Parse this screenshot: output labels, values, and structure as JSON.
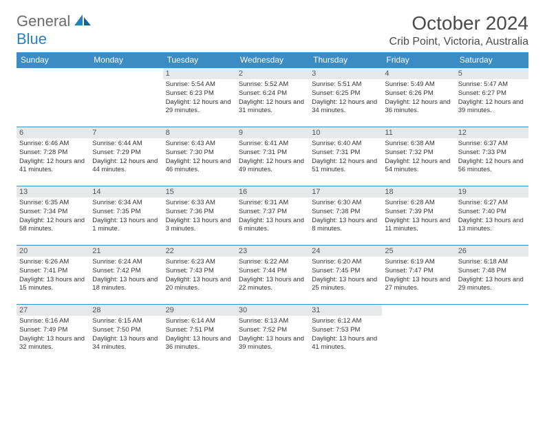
{
  "logo": {
    "general": "General",
    "blue": "Blue"
  },
  "title": "October 2024",
  "location": "Crib Point, Victoria, Australia",
  "colors": {
    "header_bg": "#3b8bc4",
    "header_text": "#ffffff",
    "daynum_bg": "#e7e8e9",
    "border": "#3b8bc4",
    "logo_gray": "#6b6b6b",
    "logo_blue": "#2a7fbf"
  },
  "weekdays": [
    "Sunday",
    "Monday",
    "Tuesday",
    "Wednesday",
    "Thursday",
    "Friday",
    "Saturday"
  ],
  "weeks": [
    [
      null,
      null,
      {
        "n": "1",
        "sr": "Sunrise: 5:54 AM",
        "ss": "Sunset: 6:23 PM",
        "dl": "Daylight: 12 hours and 29 minutes."
      },
      {
        "n": "2",
        "sr": "Sunrise: 5:52 AM",
        "ss": "Sunset: 6:24 PM",
        "dl": "Daylight: 12 hours and 31 minutes."
      },
      {
        "n": "3",
        "sr": "Sunrise: 5:51 AM",
        "ss": "Sunset: 6:25 PM",
        "dl": "Daylight: 12 hours and 34 minutes."
      },
      {
        "n": "4",
        "sr": "Sunrise: 5:49 AM",
        "ss": "Sunset: 6:26 PM",
        "dl": "Daylight: 12 hours and 36 minutes."
      },
      {
        "n": "5",
        "sr": "Sunrise: 5:47 AM",
        "ss": "Sunset: 6:27 PM",
        "dl": "Daylight: 12 hours and 39 minutes."
      }
    ],
    [
      {
        "n": "6",
        "sr": "Sunrise: 6:46 AM",
        "ss": "Sunset: 7:28 PM",
        "dl": "Daylight: 12 hours and 41 minutes."
      },
      {
        "n": "7",
        "sr": "Sunrise: 6:44 AM",
        "ss": "Sunset: 7:29 PM",
        "dl": "Daylight: 12 hours and 44 minutes."
      },
      {
        "n": "8",
        "sr": "Sunrise: 6:43 AM",
        "ss": "Sunset: 7:30 PM",
        "dl": "Daylight: 12 hours and 46 minutes."
      },
      {
        "n": "9",
        "sr": "Sunrise: 6:41 AM",
        "ss": "Sunset: 7:31 PM",
        "dl": "Daylight: 12 hours and 49 minutes."
      },
      {
        "n": "10",
        "sr": "Sunrise: 6:40 AM",
        "ss": "Sunset: 7:31 PM",
        "dl": "Daylight: 12 hours and 51 minutes."
      },
      {
        "n": "11",
        "sr": "Sunrise: 6:38 AM",
        "ss": "Sunset: 7:32 PM",
        "dl": "Daylight: 12 hours and 54 minutes."
      },
      {
        "n": "12",
        "sr": "Sunrise: 6:37 AM",
        "ss": "Sunset: 7:33 PM",
        "dl": "Daylight: 12 hours and 56 minutes."
      }
    ],
    [
      {
        "n": "13",
        "sr": "Sunrise: 6:35 AM",
        "ss": "Sunset: 7:34 PM",
        "dl": "Daylight: 12 hours and 58 minutes."
      },
      {
        "n": "14",
        "sr": "Sunrise: 6:34 AM",
        "ss": "Sunset: 7:35 PM",
        "dl": "Daylight: 13 hours and 1 minute."
      },
      {
        "n": "15",
        "sr": "Sunrise: 6:33 AM",
        "ss": "Sunset: 7:36 PM",
        "dl": "Daylight: 13 hours and 3 minutes."
      },
      {
        "n": "16",
        "sr": "Sunrise: 6:31 AM",
        "ss": "Sunset: 7:37 PM",
        "dl": "Daylight: 13 hours and 6 minutes."
      },
      {
        "n": "17",
        "sr": "Sunrise: 6:30 AM",
        "ss": "Sunset: 7:38 PM",
        "dl": "Daylight: 13 hours and 8 minutes."
      },
      {
        "n": "18",
        "sr": "Sunrise: 6:28 AM",
        "ss": "Sunset: 7:39 PM",
        "dl": "Daylight: 13 hours and 11 minutes."
      },
      {
        "n": "19",
        "sr": "Sunrise: 6:27 AM",
        "ss": "Sunset: 7:40 PM",
        "dl": "Daylight: 13 hours and 13 minutes."
      }
    ],
    [
      {
        "n": "20",
        "sr": "Sunrise: 6:26 AM",
        "ss": "Sunset: 7:41 PM",
        "dl": "Daylight: 13 hours and 15 minutes."
      },
      {
        "n": "21",
        "sr": "Sunrise: 6:24 AM",
        "ss": "Sunset: 7:42 PM",
        "dl": "Daylight: 13 hours and 18 minutes."
      },
      {
        "n": "22",
        "sr": "Sunrise: 6:23 AM",
        "ss": "Sunset: 7:43 PM",
        "dl": "Daylight: 13 hours and 20 minutes."
      },
      {
        "n": "23",
        "sr": "Sunrise: 6:22 AM",
        "ss": "Sunset: 7:44 PM",
        "dl": "Daylight: 13 hours and 22 minutes."
      },
      {
        "n": "24",
        "sr": "Sunrise: 6:20 AM",
        "ss": "Sunset: 7:45 PM",
        "dl": "Daylight: 13 hours and 25 minutes."
      },
      {
        "n": "25",
        "sr": "Sunrise: 6:19 AM",
        "ss": "Sunset: 7:47 PM",
        "dl": "Daylight: 13 hours and 27 minutes."
      },
      {
        "n": "26",
        "sr": "Sunrise: 6:18 AM",
        "ss": "Sunset: 7:48 PM",
        "dl": "Daylight: 13 hours and 29 minutes."
      }
    ],
    [
      {
        "n": "27",
        "sr": "Sunrise: 6:16 AM",
        "ss": "Sunset: 7:49 PM",
        "dl": "Daylight: 13 hours and 32 minutes."
      },
      {
        "n": "28",
        "sr": "Sunrise: 6:15 AM",
        "ss": "Sunset: 7:50 PM",
        "dl": "Daylight: 13 hours and 34 minutes."
      },
      {
        "n": "29",
        "sr": "Sunrise: 6:14 AM",
        "ss": "Sunset: 7:51 PM",
        "dl": "Daylight: 13 hours and 36 minutes."
      },
      {
        "n": "30",
        "sr": "Sunrise: 6:13 AM",
        "ss": "Sunset: 7:52 PM",
        "dl": "Daylight: 13 hours and 39 minutes."
      },
      {
        "n": "31",
        "sr": "Sunrise: 6:12 AM",
        "ss": "Sunset: 7:53 PM",
        "dl": "Daylight: 13 hours and 41 minutes."
      },
      null,
      null
    ]
  ]
}
